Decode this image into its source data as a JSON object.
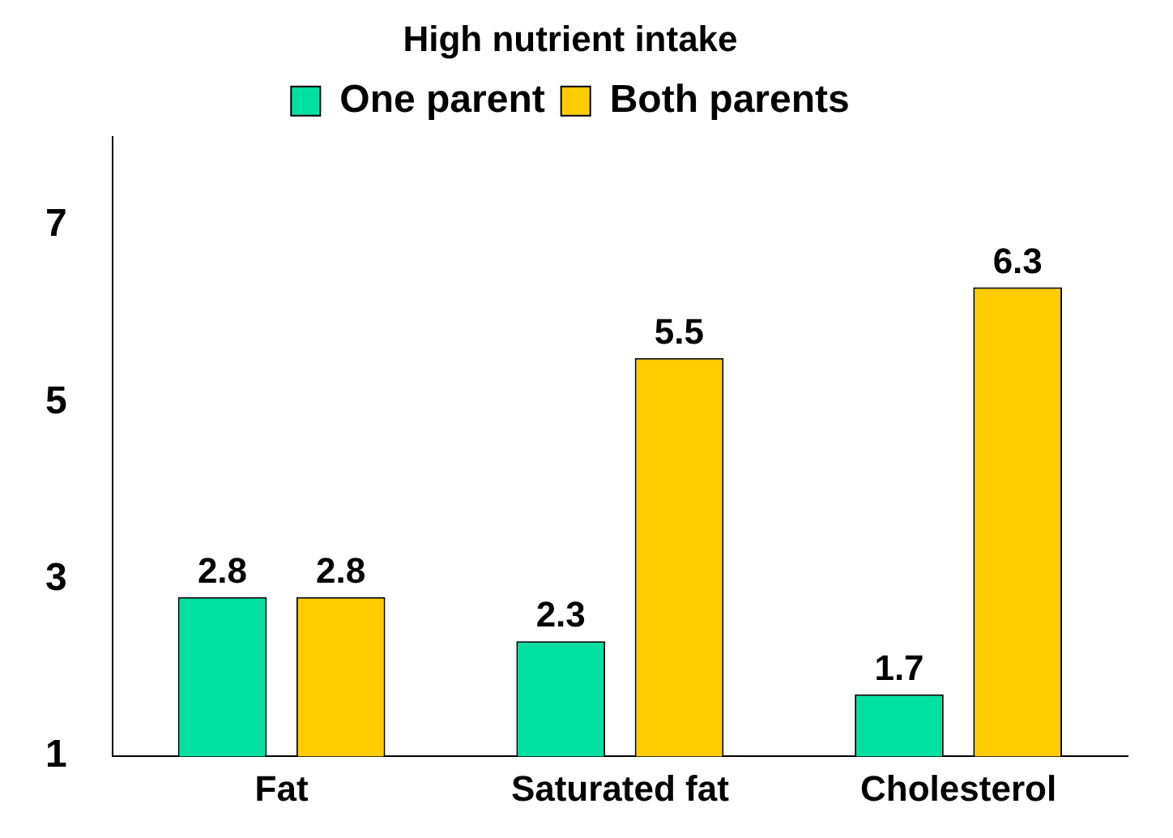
{
  "chart_data": {
    "type": "bar",
    "title": "High nutrient intake",
    "categories": [
      "Fat",
      "Saturated fat",
      "Cholesterol"
    ],
    "series": [
      {
        "name": "One parent",
        "color": "#00e0a0",
        "values": [
          2.8,
          2.3,
          1.7
        ]
      },
      {
        "name": "Both parents",
        "color": "#ffcc00",
        "values": [
          2.8,
          5.5,
          6.3
        ]
      }
    ],
    "ylim": [
      1,
      8
    ],
    "yticks": [
      1,
      3,
      5,
      7
    ],
    "grid": false,
    "legend": "top",
    "data_labels": true
  }
}
